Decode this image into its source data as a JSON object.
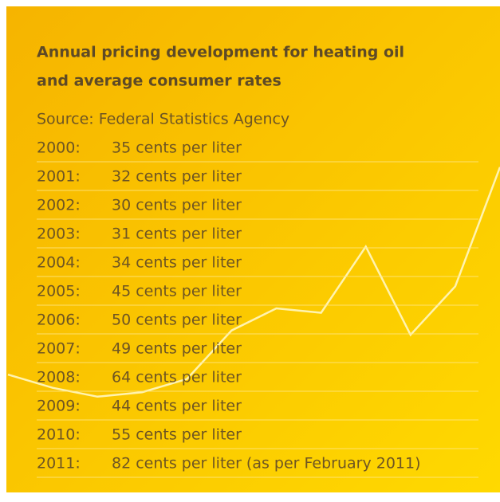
{
  "chart_data": {
    "type": "line",
    "title_lines": [
      "Annual pricing development for heating oil",
      "and average consumer rates"
    ],
    "subtitle": "Source: Federal Statistics Agency",
    "categories": [
      "2000:",
      "2001:",
      "2002:",
      "2003:",
      "2004:",
      "2005:",
      "2006:",
      "2007:",
      "2008:",
      "2009:",
      "2010:",
      "2011:"
    ],
    "values": [
      35,
      32,
      30,
      31,
      34,
      45,
      50,
      49,
      64,
      44,
      55,
      82
    ],
    "value_labels": [
      "35 cents per liter",
      "32 cents per liter",
      "30 cents per liter",
      "31 cents per liter",
      "34 cents per liter",
      "45 cents per liter",
      "50 cents per liter",
      "49 cents per liter",
      "64 cents per liter",
      "44 cents per liter",
      "55 cents per liter",
      "82 cents per liter (as per February 2011)"
    ],
    "color": "#fff3b0"
  }
}
